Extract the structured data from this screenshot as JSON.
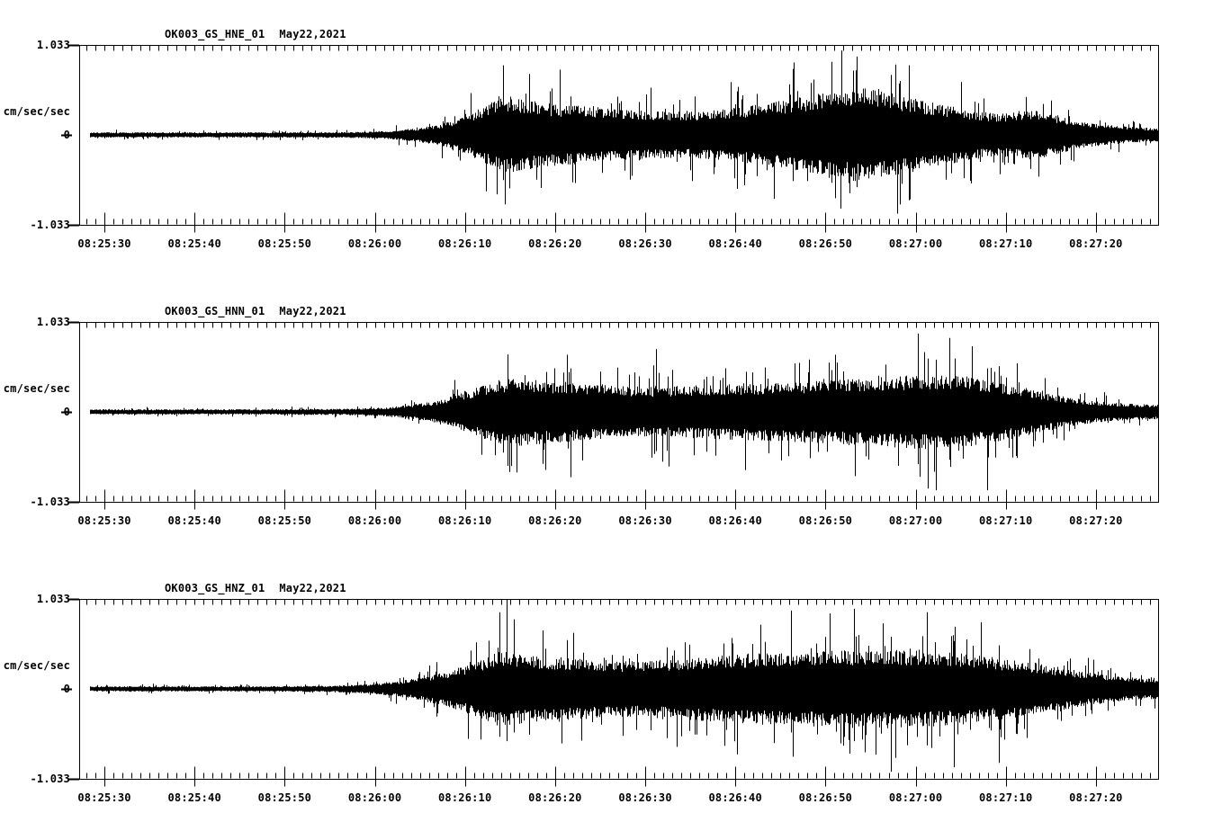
{
  "page": {
    "background": "#ffffff",
    "foreground": "#000000"
  },
  "chart_data": [
    {
      "type": "line",
      "kind": "seismogram-trace",
      "station": "OK003_GS_HNE_01",
      "date": "May22,2021",
      "y_axis": {
        "label": "cm/sec/sec",
        "ticks": [
          "1.033",
          "0",
          "-1.033"
        ],
        "ylim": [
          -1.033,
          1.033
        ]
      },
      "x_axis": {
        "tick_labels": [
          "08:25:30",
          "08:25:40",
          "08:25:50",
          "08:26:00",
          "08:26:10",
          "08:26:20",
          "08:26:30",
          "08:26:40",
          "08:26:50",
          "08:27:00",
          "08:27:10",
          "08:27:20"
        ],
        "minor_tick_sec": 1,
        "major_tick_sec": 10
      },
      "seed": 101,
      "envelope": [
        [
          0,
          0.04
        ],
        [
          20,
          0.04
        ],
        [
          30,
          0.045
        ],
        [
          34,
          0.06
        ],
        [
          37,
          0.1
        ],
        [
          40,
          0.16
        ],
        [
          43,
          0.3
        ],
        [
          45,
          0.45
        ],
        [
          47,
          0.6
        ],
        [
          49,
          0.55
        ],
        [
          52,
          0.48
        ],
        [
          56,
          0.44
        ],
        [
          60,
          0.4
        ],
        [
          64,
          0.36
        ],
        [
          68,
          0.36
        ],
        [
          72,
          0.4
        ],
        [
          76,
          0.48
        ],
        [
          80,
          0.58
        ],
        [
          84,
          0.68
        ],
        [
          87,
          0.72
        ],
        [
          90,
          0.64
        ],
        [
          93,
          0.55
        ],
        [
          96,
          0.46
        ],
        [
          99,
          0.38
        ],
        [
          102,
          0.32
        ],
        [
          105,
          0.38
        ],
        [
          107,
          0.36
        ],
        [
          110,
          0.24
        ],
        [
          113,
          0.17
        ],
        [
          116,
          0.13
        ],
        [
          119.7,
          0.1
        ]
      ],
      "feature_spikes": [
        {
          "t": 47.0,
          "up": 0.8,
          "down": 0.52
        },
        {
          "t": 83.5,
          "up": 0.84,
          "down": 0.55
        },
        {
          "t": 86.3,
          "up": 0.9,
          "down": 0.6
        },
        {
          "t": 92.0,
          "up": 0.8,
          "down": 0.75
        },
        {
          "t": 73.0,
          "up": 0.5,
          "down": 0.62
        },
        {
          "t": 91.0,
          "up": 0.62,
          "down": 0.8
        }
      ]
    },
    {
      "type": "line",
      "kind": "seismogram-trace",
      "station": "OK003_GS_HNN_01",
      "date": "May22,2021",
      "y_axis": {
        "label": "cm/sec/sec",
        "ticks": [
          "1.033",
          "0",
          "-1.033"
        ],
        "ylim": [
          -1.033,
          1.033
        ]
      },
      "x_axis": {
        "tick_labels": [
          "08:25:30",
          "08:25:40",
          "08:25:50",
          "08:26:00",
          "08:26:10",
          "08:26:20",
          "08:26:30",
          "08:26:40",
          "08:26:50",
          "08:27:00",
          "08:27:10",
          "08:27:20"
        ],
        "minor_tick_sec": 1,
        "major_tick_sec": 10
      },
      "seed": 202,
      "envelope": [
        [
          0,
          0.04
        ],
        [
          20,
          0.04
        ],
        [
          30,
          0.05
        ],
        [
          34,
          0.07
        ],
        [
          37,
          0.11
        ],
        [
          40,
          0.18
        ],
        [
          43,
          0.32
        ],
        [
          46,
          0.48
        ],
        [
          49,
          0.52
        ],
        [
          52,
          0.48
        ],
        [
          55,
          0.45
        ],
        [
          59,
          0.42
        ],
        [
          63,
          0.38
        ],
        [
          67,
          0.4
        ],
        [
          71,
          0.42
        ],
        [
          75,
          0.44
        ],
        [
          79,
          0.46
        ],
        [
          83,
          0.48
        ],
        [
          87,
          0.52
        ],
        [
          91,
          0.55
        ],
        [
          95,
          0.58
        ],
        [
          98,
          0.56
        ],
        [
          101,
          0.48
        ],
        [
          104,
          0.4
        ],
        [
          107,
          0.3
        ],
        [
          110,
          0.22
        ],
        [
          113,
          0.16
        ],
        [
          116,
          0.13
        ],
        [
          119.7,
          0.11
        ]
      ],
      "feature_spikes": [
        {
          "t": 54.5,
          "up": 0.5,
          "down": 0.75
        },
        {
          "t": 64.0,
          "up": 0.72,
          "down": 0.45
        },
        {
          "t": 47.5,
          "up": 0.66,
          "down": 0.62
        },
        {
          "t": 93.0,
          "up": 0.9,
          "down": 0.6
        },
        {
          "t": 95.0,
          "up": 0.6,
          "down": 0.9
        },
        {
          "t": 96.5,
          "up": 0.85,
          "down": 0.55
        },
        {
          "t": 100.7,
          "up": 0.5,
          "down": 0.9
        }
      ]
    },
    {
      "type": "line",
      "kind": "seismogram-trace",
      "station": "OK003_GS_HNZ_01",
      "date": "May22,2021",
      "y_axis": {
        "label": "cm/sec/sec",
        "ticks": [
          "1.033",
          "0",
          "-1.033"
        ],
        "ylim": [
          -1.033,
          1.033
        ]
      },
      "x_axis": {
        "tick_labels": [
          "08:25:30",
          "08:25:40",
          "08:25:50",
          "08:26:00",
          "08:26:10",
          "08:26:20",
          "08:26:30",
          "08:26:40",
          "08:26:50",
          "08:27:00",
          "08:27:10",
          "08:27:20"
        ],
        "minor_tick_sec": 1,
        "major_tick_sec": 10
      },
      "seed": 303,
      "envelope": [
        [
          0,
          0.04
        ],
        [
          20,
          0.04
        ],
        [
          28,
          0.05
        ],
        [
          32,
          0.07
        ],
        [
          35,
          0.11
        ],
        [
          38,
          0.18
        ],
        [
          41,
          0.28
        ],
        [
          44,
          0.42
        ],
        [
          46.5,
          0.58
        ],
        [
          48,
          0.55
        ],
        [
          51,
          0.5
        ],
        [
          55,
          0.48
        ],
        [
          58,
          0.44
        ],
        [
          62,
          0.42
        ],
        [
          66,
          0.46
        ],
        [
          70,
          0.5
        ],
        [
          74,
          0.54
        ],
        [
          78,
          0.56
        ],
        [
          82,
          0.58
        ],
        [
          86,
          0.6
        ],
        [
          90,
          0.6
        ],
        [
          94,
          0.58
        ],
        [
          98,
          0.54
        ],
        [
          102,
          0.48
        ],
        [
          106,
          0.4
        ],
        [
          110,
          0.3
        ],
        [
          113,
          0.23
        ],
        [
          116,
          0.18
        ],
        [
          119.7,
          0.15
        ]
      ],
      "feature_spikes": [
        {
          "t": 46.6,
          "up": 0.88,
          "down": 0.55
        },
        {
          "t": 47.4,
          "up": 1.03,
          "down": 0.6
        },
        {
          "t": 48.2,
          "up": 0.8,
          "down": 0.5
        },
        {
          "t": 79.0,
          "up": 0.9,
          "down": 0.5
        },
        {
          "t": 86.0,
          "up": 0.92,
          "down": 0.6
        },
        {
          "t": 90.0,
          "up": 0.6,
          "down": 0.95
        },
        {
          "t": 94.0,
          "up": 0.88,
          "down": 0.65
        },
        {
          "t": 97.0,
          "up": 0.55,
          "down": 0.9
        },
        {
          "t": 102.0,
          "up": 0.5,
          "down": 0.85
        }
      ]
    }
  ]
}
